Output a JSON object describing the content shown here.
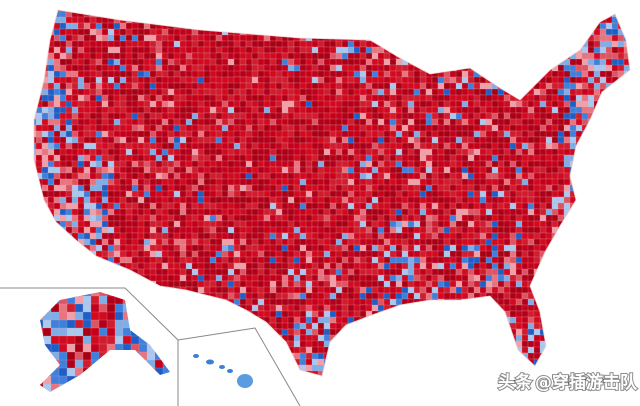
{
  "watermark": {
    "source": "头条",
    "account": "@穿插游击队"
  }
}
